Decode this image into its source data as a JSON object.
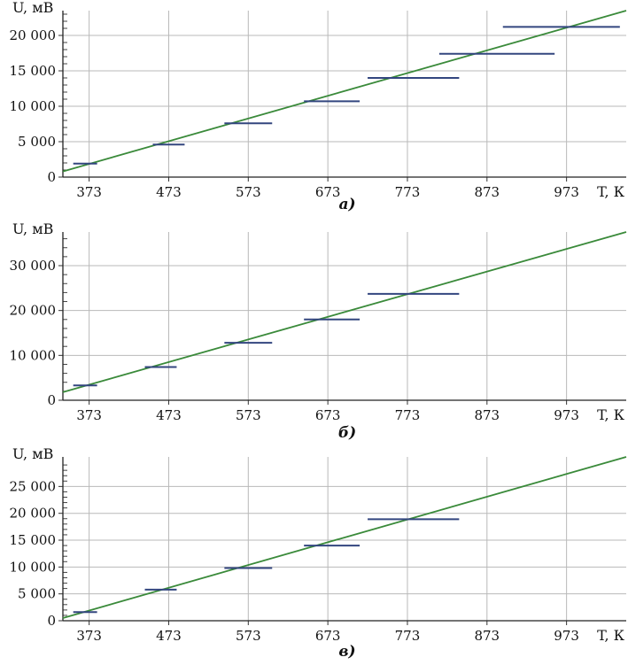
{
  "chart_data": [
    {
      "type": "line",
      "subtitle": "а)",
      "xlabel": "T, К",
      "ylabel": "U, мВ",
      "x_ticks": [
        "373",
        "473",
        "573",
        "673",
        "773",
        "873",
        "973"
      ],
      "y_ticks": [
        "0",
        "5 000",
        "10 000",
        "15 000",
        "20 000"
      ],
      "xlim": [
        340,
        1048
      ],
      "ylim": [
        0,
        23500
      ],
      "grid": true,
      "colors": {
        "fit": "#3a8a3a",
        "steps": "#33467f"
      },
      "fit_line": {
        "x": [
          340,
          1048
        ],
        "y": [
          800,
          23500
        ]
      },
      "steps": [
        {
          "x_from": 353,
          "x_to": 383,
          "y": 1900
        },
        {
          "x_from": 453,
          "x_to": 493,
          "y": 4600
        },
        {
          "x_from": 543,
          "x_to": 603,
          "y": 7600
        },
        {
          "x_from": 643,
          "x_to": 713,
          "y": 10700
        },
        {
          "x_from": 723,
          "x_to": 838,
          "y": 14000
        },
        {
          "x_from": 813,
          "x_to": 958,
          "y": 17400
        },
        {
          "x_from": 893,
          "x_to": 1040,
          "y": 21200
        }
      ]
    },
    {
      "type": "line",
      "subtitle": "б)",
      "xlabel": "T, К",
      "ylabel": "U, мВ",
      "x_ticks": [
        "373",
        "473",
        "573",
        "673",
        "773",
        "873",
        "973"
      ],
      "y_ticks": [
        "0",
        "10 000",
        "20 000",
        "30 000"
      ],
      "xlim": [
        340,
        1048
      ],
      "ylim": [
        0,
        37500
      ],
      "grid": true,
      "colors": {
        "fit": "#3a8a3a",
        "steps": "#33467f"
      },
      "fit_line": {
        "x": [
          340,
          1048
        ],
        "y": [
          1800,
          37500
        ]
      },
      "steps": [
        {
          "x_from": 353,
          "x_to": 383,
          "y": 3300
        },
        {
          "x_from": 443,
          "x_to": 483,
          "y": 7400
        },
        {
          "x_from": 543,
          "x_to": 603,
          "y": 12800
        },
        {
          "x_from": 643,
          "x_to": 713,
          "y": 18000
        },
        {
          "x_from": 723,
          "x_to": 838,
          "y": 23700
        }
      ]
    },
    {
      "type": "line",
      "subtitle": "в)",
      "xlabel": "T, К",
      "ylabel": "U, мВ",
      "x_ticks": [
        "373",
        "473",
        "573",
        "673",
        "773",
        "873",
        "973"
      ],
      "y_ticks": [
        "0",
        "5 000",
        "10 000",
        "15 000",
        "20 000",
        "25 000"
      ],
      "xlim": [
        340,
        1048
      ],
      "ylim": [
        0,
        30500
      ],
      "grid": true,
      "colors": {
        "fit": "#3a8a3a",
        "steps": "#33467f"
      },
      "fit_line": {
        "x": [
          340,
          1048
        ],
        "y": [
          500,
          30500
        ]
      },
      "steps": [
        {
          "x_from": 353,
          "x_to": 383,
          "y": 1600
        },
        {
          "x_from": 443,
          "x_to": 483,
          "y": 5800
        },
        {
          "x_from": 543,
          "x_to": 603,
          "y": 9800
        },
        {
          "x_from": 643,
          "x_to": 713,
          "y": 14000
        },
        {
          "x_from": 723,
          "x_to": 838,
          "y": 18900
        }
      ]
    }
  ]
}
